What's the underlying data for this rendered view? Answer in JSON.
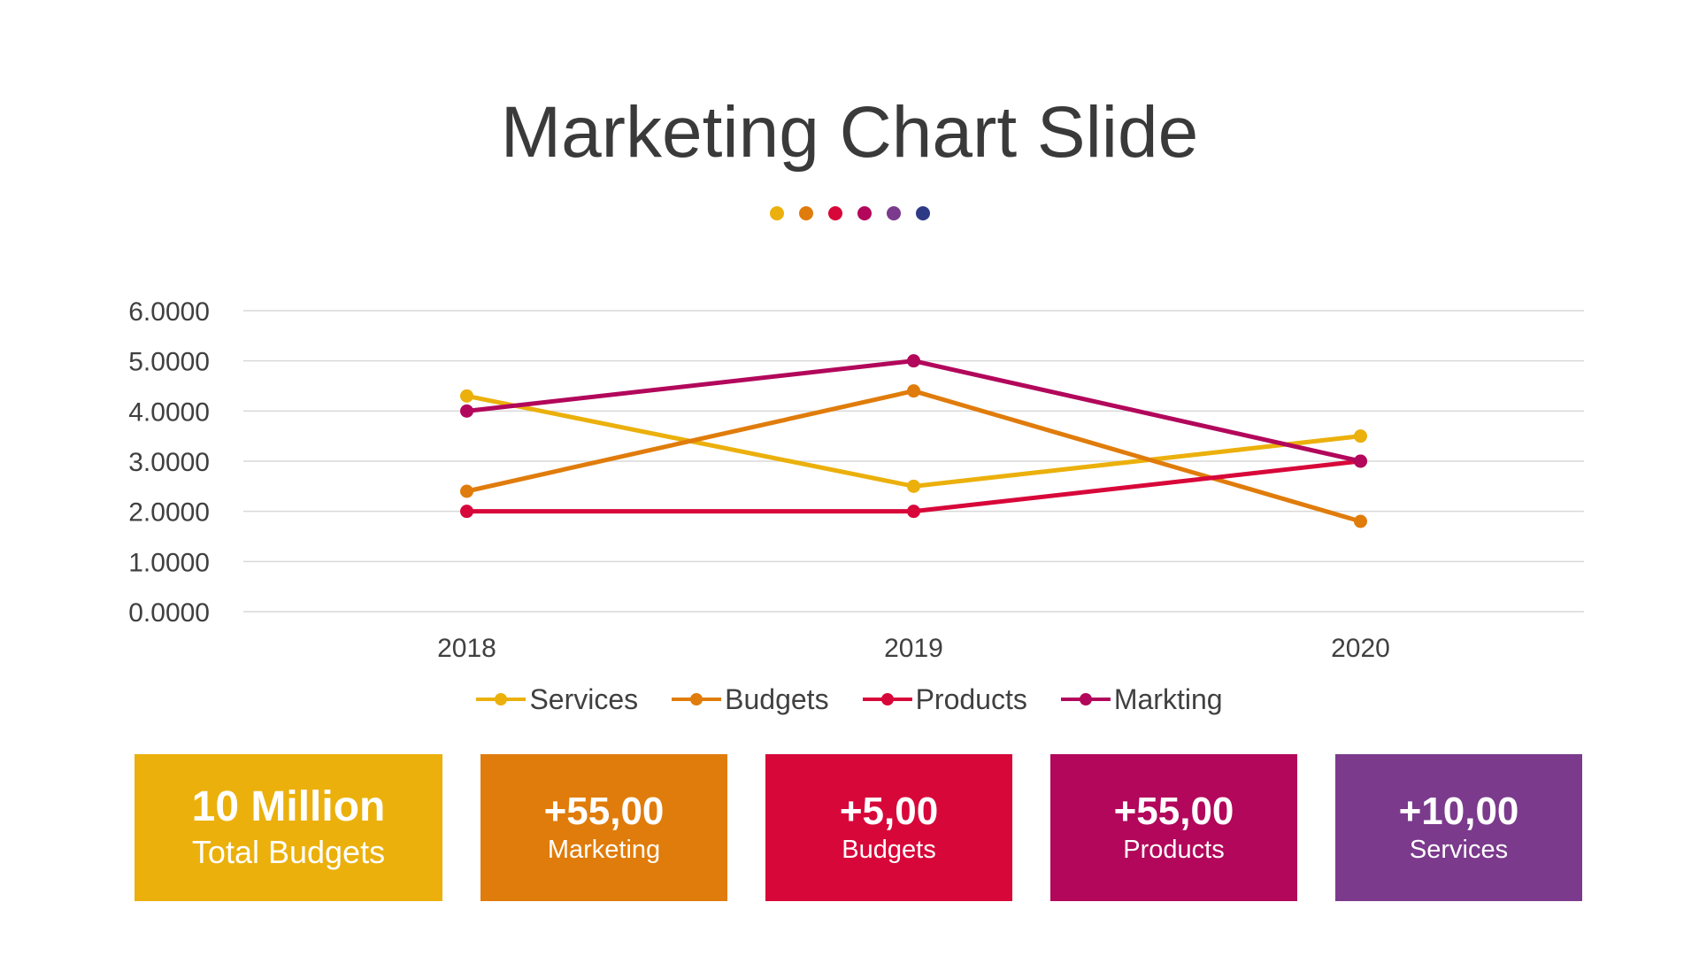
{
  "slide": {
    "title": "Marketing Chart Slide",
    "dot_colors": [
      "#EBB00C",
      "#E07C0B",
      "#D8073A",
      "#B2075B",
      "#7B3A8C",
      "#2E3A86"
    ]
  },
  "chart_data": {
    "type": "line",
    "categories": [
      "2018",
      "2019",
      "2020"
    ],
    "ylim": [
      0,
      6
    ],
    "yticks": [
      "0.0000",
      "1.0000",
      "2.0000",
      "3.0000",
      "4.0000",
      "5.0000",
      "6.0000"
    ],
    "grid": true,
    "legend_position": "bottom",
    "series": [
      {
        "name": "Services",
        "color": "#EBB00C",
        "values": [
          4.3,
          2.5,
          3.5
        ]
      },
      {
        "name": "Budgets",
        "color": "#E07C0B",
        "values": [
          2.4,
          4.4,
          1.8
        ]
      },
      {
        "name": "Products",
        "color": "#D8073A",
        "values": [
          2.0,
          2.0,
          3.0
        ]
      },
      {
        "name": "Markting",
        "color": "#B2075B",
        "values": [
          4.0,
          5.0,
          3.0
        ]
      }
    ]
  },
  "stats": [
    {
      "value": "10 Million",
      "label": "Total Budgets",
      "color": "#EBB00C"
    },
    {
      "value": "+55,00",
      "label": "Marketing",
      "color": "#E07C0B"
    },
    {
      "value": "+5,00",
      "label": "Budgets",
      "color": "#D8073A"
    },
    {
      "value": "+55,00",
      "label": "Products",
      "color": "#B2075B"
    },
    {
      "value": "+10,00",
      "label": "Services",
      "color": "#7B3A8C"
    }
  ]
}
